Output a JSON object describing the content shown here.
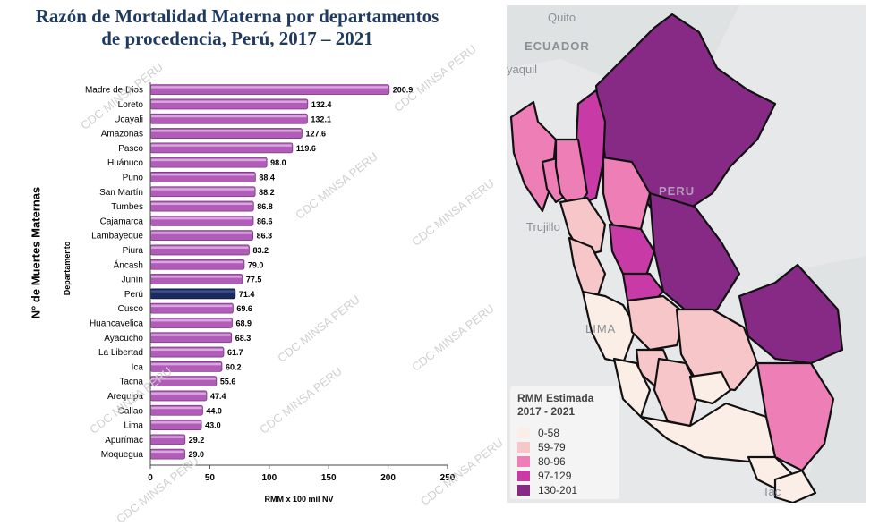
{
  "chart_data": [
    {
      "type": "bar",
      "orientation": "horizontal",
      "title": "Razón de Mortalidad Materna por departamentos de procedencia, Perú, 2017 – 2021",
      "title_lines": [
        "Razón de Mortalidad Materna por departamentos",
        "de procedencia, Perú, 2017 – 2021"
      ],
      "categories": [
        "Madre de Dios",
        "Loreto",
        "Ucayali",
        "Amazonas",
        "Pasco",
        "Huánuco",
        "Puno",
        "San Martín",
        "Tumbes",
        "Cajamarca",
        "Lambayeque",
        "Piura",
        "Áncash",
        "Junín",
        "Perú",
        "Cusco",
        "Huancavelica",
        "Ayacucho",
        "La Libertad",
        "Ica",
        "Tacna",
        "Arequipa",
        "Callao",
        "Lima",
        "Apurímac",
        "Moquegua"
      ],
      "values": [
        200.9,
        132.4,
        132.1,
        127.6,
        119.6,
        98.0,
        88.4,
        88.2,
        86.8,
        86.6,
        86.3,
        83.2,
        79.0,
        77.5,
        71.4,
        69.6,
        68.9,
        68.3,
        61.7,
        60.2,
        55.6,
        47.4,
        44.0,
        43.0,
        29.2,
        29.0
      ],
      "value_labels": [
        "200.9",
        "132.4",
        "132.1",
        "127.6",
        "119.6",
        "98.0",
        "88.4",
        "88.2",
        "86.8",
        "86.6",
        "86.3",
        "83.2",
        "79.0",
        "77.5",
        "71.4",
        "69.6",
        "68.9",
        "68.3",
        "61.7",
        "60.2",
        "55.6",
        "47.4",
        "44.0",
        "43.0",
        "29.2",
        "29.0"
      ],
      "highlight_category": "Perú",
      "xlabel": "RMM x 100 mil NV",
      "ylabel": "Departamento",
      "outer_ylabel": "N° de Muertes Maternas",
      "xlim": [
        0,
        250
      ],
      "xticks": [
        "0",
        "50",
        "100",
        "150",
        "200",
        "250"
      ],
      "grid": false,
      "colors": {
        "bar": "#b05cb8",
        "bar_dark": "#7d3a85",
        "highlight": "#1a2a5e"
      }
    },
    {
      "type": "choropleth_map",
      "legend": {
        "title_lines": [
          "RMM Estimada",
          "2017 - 2021"
        ],
        "items": [
          {
            "label": "0-58",
            "color": "#fbeee7"
          },
          {
            "label": "59-79",
            "color": "#f7c6c9"
          },
          {
            "label": "80-96",
            "color": "#ee7fb6"
          },
          {
            "label": "97-129",
            "color": "#c83aa6"
          },
          {
            "label": "130-201",
            "color": "#862a86"
          }
        ],
        "position": "bottom-left"
      },
      "place_labels": [
        "Quito",
        "ECUADOR",
        "yaquil",
        "PERU",
        "Trujillo",
        "LIMA",
        "Tac"
      ]
    }
  ],
  "watermark": "CDC MINSA PERU"
}
